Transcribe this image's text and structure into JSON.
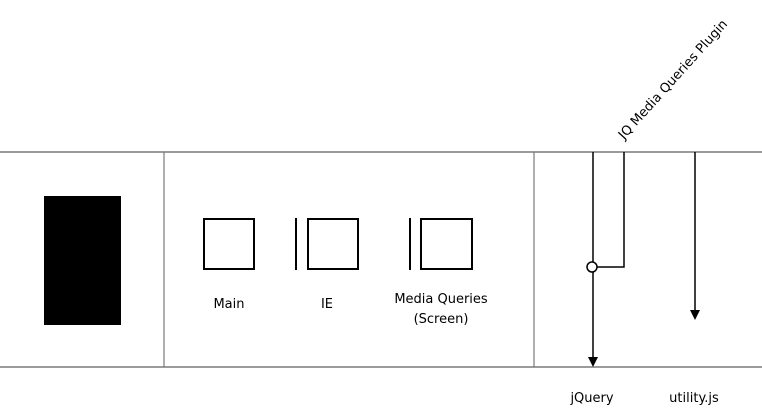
{
  "stylesheets": {
    "main_label": "Main",
    "ie_label": "IE",
    "media_queries_label_line1": "Media Queries",
    "media_queries_label_line2": "(Screen)"
  },
  "scripts": {
    "jquery_label": "jQuery",
    "utility_label": "utility.js",
    "plugin_label": "JQ Media Queries Plugin"
  }
}
